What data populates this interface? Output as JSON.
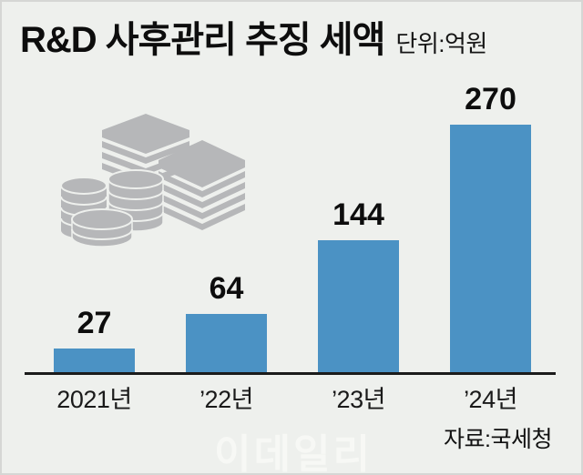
{
  "header": {
    "title": "R&D 사후관리 추징 세액",
    "unit_label": "단위:억원"
  },
  "chart_data": {
    "type": "bar",
    "title": "R&D 사후관리 추징 세액",
    "unit": "억원",
    "categories": [
      "2021년",
      "’22년",
      "’23년",
      "’24년"
    ],
    "values": [
      27,
      64,
      144,
      270
    ],
    "value_labels": [
      "27",
      "64",
      "144",
      "270"
    ],
    "xlabel": "",
    "ylabel": "",
    "ylim": [
      0,
      285
    ],
    "grid": false,
    "legend": "none",
    "bar_color": "#4b92c4"
  },
  "footer": {
    "watermark": "이데일리",
    "source": "자료:국세청"
  },
  "icons": {
    "money_icon": "money-stacks: two piles of banknotes and three stacks of coins, gray"
  },
  "colors": {
    "background": "#eef0ed",
    "bar": "#4b92c4",
    "text": "#0d0d0d",
    "icon_gray": "#b6b7b9",
    "watermark": "#f7f8f5",
    "axis": "#1b1b1b"
  }
}
